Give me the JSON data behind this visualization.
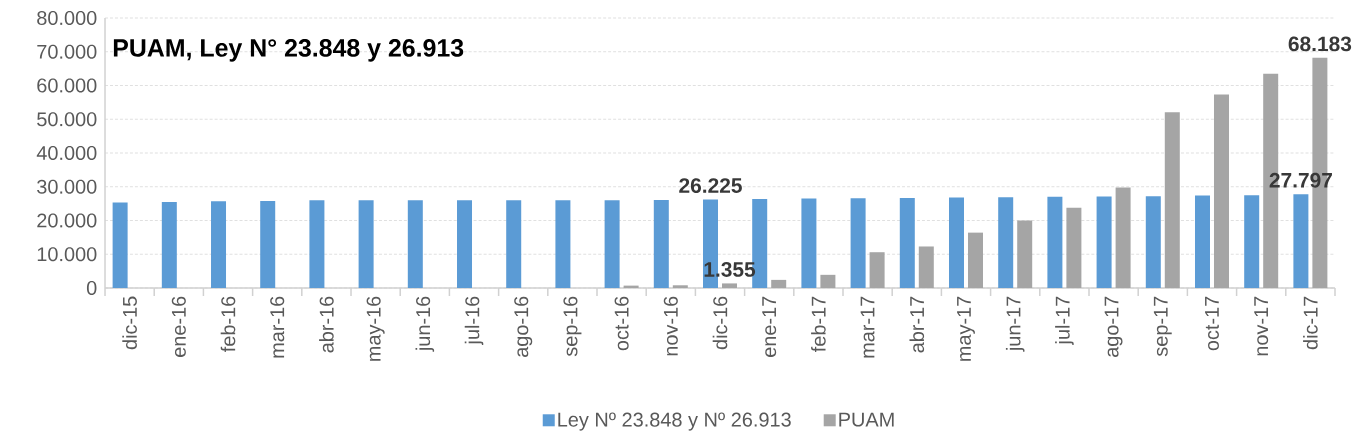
{
  "chart_data": {
    "type": "bar",
    "title": "PUAM, Ley N° 23.848 y 26.913",
    "categories": [
      "dic-15",
      "ene-16",
      "feb-16",
      "mar-16",
      "abr-16",
      "may-16",
      "jun-16",
      "jul-16",
      "ago-16",
      "sep-16",
      "oct-16",
      "nov-16",
      "dic-16",
      "ene-17",
      "feb-17",
      "mar-17",
      "abr-17",
      "may-17",
      "jun-17",
      "jul-17",
      "ago-17",
      "sep-17",
      "oct-17",
      "nov-17",
      "dic-17"
    ],
    "series": [
      {
        "name": "Ley Nº 23.848 y Nº 26.913",
        "color": "#5b9bd5",
        "values": [
          25300,
          25500,
          25700,
          25800,
          26000,
          26000,
          26000,
          26000,
          26000,
          26000,
          26000,
          26100,
          26225,
          26400,
          26500,
          26600,
          26700,
          26800,
          26900,
          27000,
          27100,
          27200,
          27400,
          27500,
          27797
        ],
        "value_labels": [
          null,
          null,
          null,
          null,
          null,
          null,
          null,
          null,
          null,
          null,
          null,
          null,
          "26.225",
          null,
          null,
          null,
          null,
          null,
          null,
          null,
          null,
          null,
          null,
          null,
          "27.797"
        ]
      },
      {
        "name": "PUAM",
        "color": "#a5a5a5",
        "values": [
          null,
          null,
          null,
          null,
          null,
          null,
          null,
          null,
          null,
          null,
          700,
          800,
          1355,
          2400,
          3900,
          10600,
          12300,
          16400,
          20000,
          23800,
          29800,
          52100,
          57300,
          63500,
          68183
        ],
        "value_labels": [
          null,
          null,
          null,
          null,
          null,
          null,
          null,
          null,
          null,
          null,
          null,
          null,
          "1.355",
          null,
          null,
          null,
          null,
          null,
          null,
          null,
          null,
          null,
          null,
          null,
          "68.183"
        ]
      }
    ],
    "ylim": [
      0,
      80000
    ],
    "yticks": [
      {
        "value": 0,
        "label": "0"
      },
      {
        "value": 10000,
        "label": "10.000"
      },
      {
        "value": 20000,
        "label": "20.000"
      },
      {
        "value": 30000,
        "label": "30.000"
      },
      {
        "value": 40000,
        "label": "40.000"
      },
      {
        "value": 50000,
        "label": "50.000"
      },
      {
        "value": 60000,
        "label": "60.000"
      },
      {
        "value": 70000,
        "label": "70.000"
      },
      {
        "value": 80000,
        "label": "80.000"
      }
    ],
    "grid": "y",
    "legend": "bottom"
  }
}
